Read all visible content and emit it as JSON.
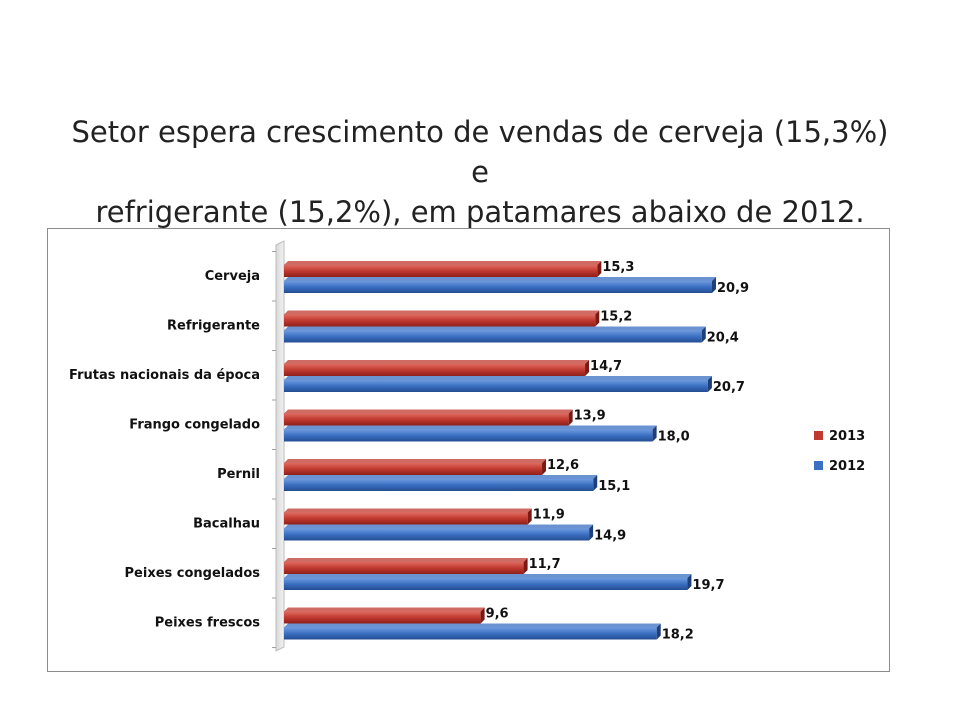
{
  "slide": {
    "title_line1": "Setor espera crescimento de vendas de cerveja (15,3%) e",
    "title_line2": "refrigerante (15,2%), em patamares abaixo de 2012."
  },
  "chart_data": {
    "type": "bar",
    "orientation": "horizontal",
    "categories": [
      "Cerveja",
      "Refrigerante",
      "Frutas nacionais da época",
      "Frango congelado",
      "Pernil",
      "Bacalhau",
      "Peixes congelados",
      "Peixes frescos"
    ],
    "series": [
      {
        "name": "2013",
        "color": "#c0392f",
        "values": [
          15.3,
          15.2,
          14.7,
          13.9,
          12.6,
          11.9,
          11.7,
          9.6
        ],
        "labels": [
          "15,3",
          "15,2",
          "14,7",
          "13,9",
          "12,6",
          "11,9",
          "11,7",
          "9,6"
        ]
      },
      {
        "name": "2012",
        "color": "#3a6fc2",
        "values": [
          20.9,
          20.4,
          20.7,
          18.0,
          15.1,
          14.9,
          19.7,
          18.2
        ],
        "labels": [
          "20,9",
          "20,4",
          "20,7",
          "18,0",
          "15,1",
          "14,9",
          "19,7",
          "18,2"
        ]
      }
    ],
    "xlim": [
      0,
      25
    ],
    "grid": false,
    "legend_position": "right"
  }
}
